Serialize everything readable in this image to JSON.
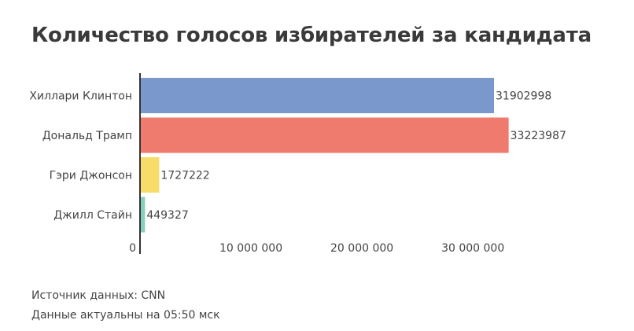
{
  "title": "Количество голосов избирателей за кандидата",
  "footer": {
    "source": "Источник данных: CNN",
    "updated": "Данные актуальны на 05:50 мск"
  },
  "chart_data": {
    "type": "bar",
    "orientation": "horizontal",
    "title": "Количество голосов избирателей за кандидата",
    "categories": [
      "Хиллари Клинтон",
      "Дональд Трамп",
      "Гэри Джонсон",
      "Джилл Стайн"
    ],
    "values": [
      31902998,
      33223987,
      1727222,
      449327
    ],
    "value_labels": [
      "31902998",
      "33223987",
      "1727222",
      "449327"
    ],
    "colors": [
      "#7b98cc",
      "#ee7b6d",
      "#f7dc6a",
      "#86d0bd"
    ],
    "xlim": [
      0,
      35000000
    ],
    "x_ticks": [
      0,
      10000000,
      20000000,
      30000000
    ],
    "x_tick_labels": [
      "0",
      "10 000 000",
      "20 000 000",
      "30 000 000"
    ],
    "xlabel": "",
    "ylabel": "",
    "grid": false,
    "legend": false
  }
}
